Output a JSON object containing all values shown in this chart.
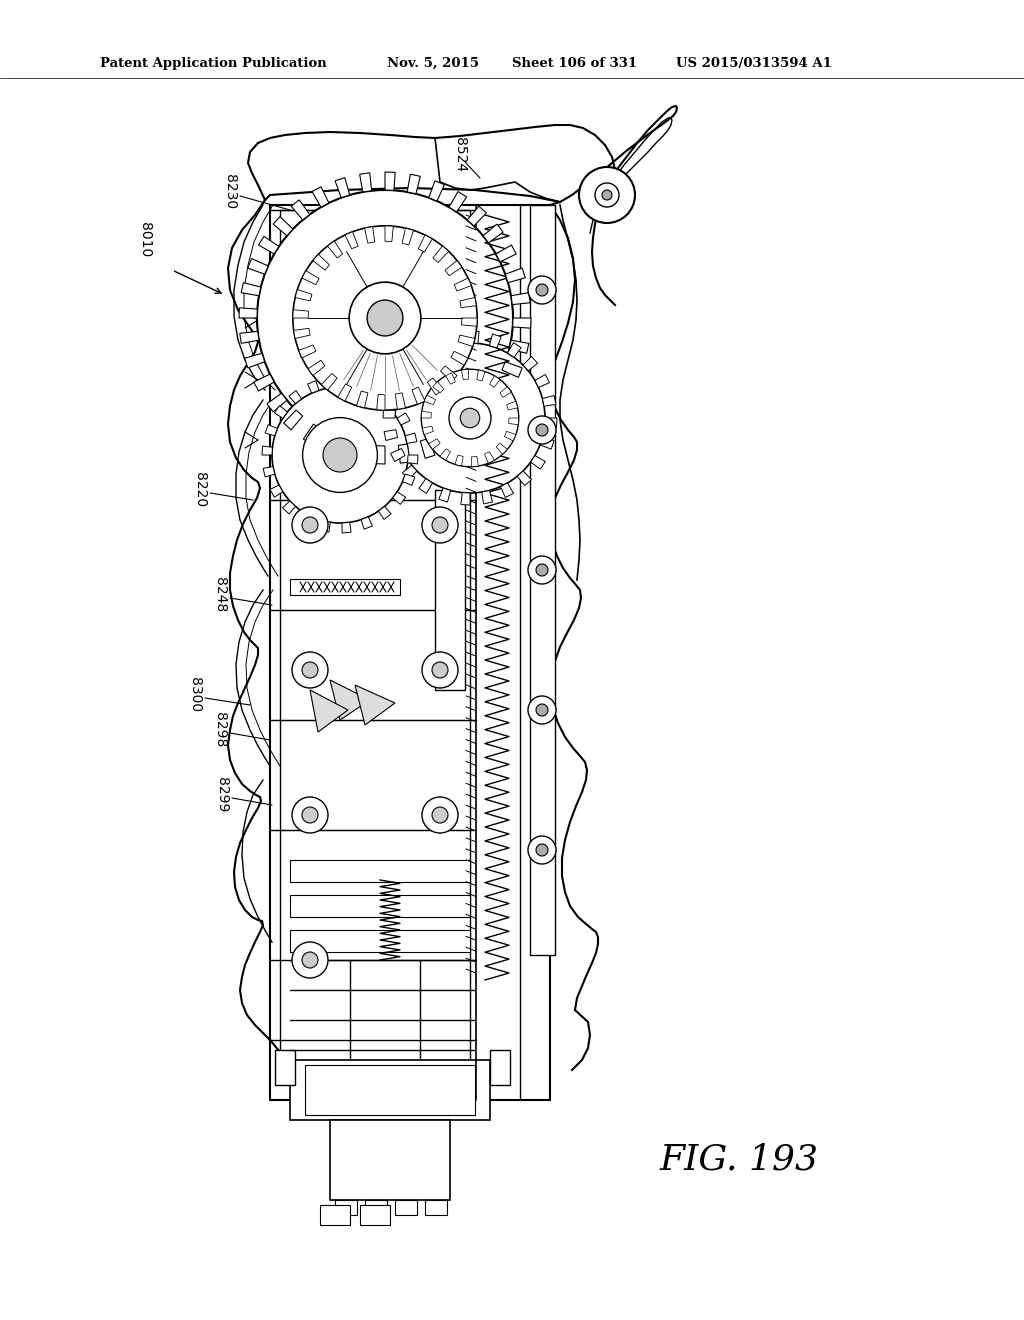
{
  "title_left": "Patent Application Publication",
  "title_mid": "Nov. 5, 2015",
  "title_sheet": "Sheet 106 of 331",
  "title_patent": "US 2015/0313594 A1",
  "fig_label": "FIG. 193",
  "background_color": "#ffffff",
  "line_color": "#000000",
  "header_fontsize": 9.5,
  "fig_label_fontsize": 26,
  "annotation_fontsize": 9
}
